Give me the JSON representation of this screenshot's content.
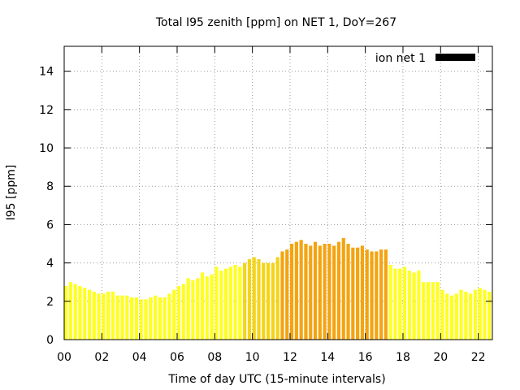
{
  "chart_data": {
    "type": "bar",
    "title": "Total I95 zenith [ppm] on NET 1, DoY=267",
    "xlabel": "Time of day UTC (15-minute intervals)",
    "ylabel": "I95 [ppm]",
    "xlim": [
      0,
      22.75
    ],
    "ylim": [
      0,
      15.3
    ],
    "x_ticks": [
      "00",
      "02",
      "04",
      "06",
      "08",
      "10",
      "12",
      "14",
      "16",
      "18",
      "20",
      "22"
    ],
    "x_tick_values": [
      0,
      2,
      4,
      6,
      8,
      10,
      12,
      14,
      16,
      18,
      20,
      22
    ],
    "y_ticks": [
      "0",
      "2",
      "4",
      "6",
      "8",
      "10",
      "12",
      "14"
    ],
    "y_tick_values": [
      0,
      2,
      4,
      6,
      8,
      10,
      12,
      14
    ],
    "grid": true,
    "legend": {
      "label": "ion net 1",
      "color": "#000000",
      "position": "top-right"
    },
    "interval_hours": 0.25,
    "colors": {
      "low": "#ffff1f",
      "mid": "#f5d418",
      "high": "#f4a411"
    },
    "series": [
      {
        "values": [
          2.8,
          3.0,
          2.9,
          2.8,
          2.7,
          2.6,
          2.5,
          2.4,
          2.4,
          2.5,
          2.5,
          2.3,
          2.3,
          2.3,
          2.2,
          2.2,
          2.1,
          2.1,
          2.2,
          2.3,
          2.2,
          2.2,
          2.4,
          2.6,
          2.8,
          2.9,
          3.2,
          3.1,
          3.2,
          3.5,
          3.3,
          3.4,
          3.8,
          3.6,
          3.7,
          3.8,
          3.9,
          3.8,
          4.0,
          4.2,
          4.3,
          4.2,
          4.0,
          4.0,
          4.0,
          4.3,
          4.6,
          4.7,
          5.0,
          5.1,
          5.2,
          5.0,
          4.9,
          5.1,
          4.9,
          5.0,
          5.0,
          4.9,
          5.1,
          5.3,
          5.0,
          4.8,
          4.8,
          4.9,
          4.7,
          4.6,
          4.6,
          4.7,
          4.7,
          3.9,
          3.7,
          3.7,
          3.8,
          3.6,
          3.5,
          3.6,
          3.0,
          3.0,
          3.0,
          3.0,
          2.6,
          2.4,
          2.3,
          2.4,
          2.6,
          2.5,
          2.4,
          2.6,
          2.7,
          2.6,
          2.5
        ],
        "color_levels": [
          "low",
          "low",
          "low",
          "low",
          "low",
          "low",
          "low",
          "low",
          "low",
          "low",
          "low",
          "low",
          "low",
          "low",
          "low",
          "low",
          "low",
          "low",
          "low",
          "low",
          "low",
          "low",
          "low",
          "low",
          "low",
          "low",
          "low",
          "low",
          "low",
          "low",
          "low",
          "low",
          "low",
          "low",
          "low",
          "low",
          "low",
          "low",
          "mid",
          "mid",
          "mid",
          "mid",
          "mid",
          "mid",
          "mid",
          "mid",
          "high",
          "high",
          "high",
          "high",
          "high",
          "high",
          "high",
          "high",
          "high",
          "high",
          "high",
          "high",
          "high",
          "high",
          "high",
          "high",
          "high",
          "high",
          "high",
          "high",
          "high",
          "high",
          "high",
          "low",
          "low",
          "low",
          "low",
          "low",
          "low",
          "low",
          "low",
          "low",
          "low",
          "low",
          "low",
          "low",
          "low",
          "low",
          "low",
          "low",
          "low",
          "low",
          "low",
          "low",
          "low"
        ]
      }
    ]
  }
}
